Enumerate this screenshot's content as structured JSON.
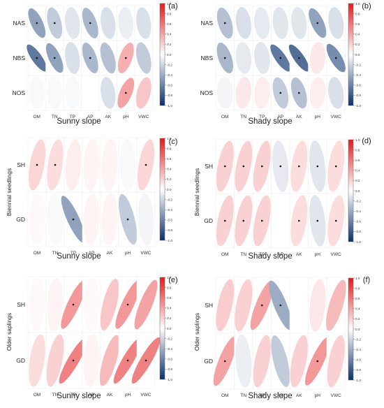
{
  "colorbar": {
    "ticks": [
      "1.0",
      "0.8",
      "0.6",
      "0.4",
      "0.2",
      "0.0",
      "-0.2",
      "-0.4",
      "-0.6",
      "-0.8",
      "-1.0"
    ],
    "low_color": "#08306b",
    "mid_color": "#ffffff",
    "high_color": "#e41a1c"
  },
  "chart_data": [
    {
      "type": "heatmap",
      "panel": "(a)",
      "xlabel": "Sunny slope",
      "ylabel": "",
      "columns": [
        "OM",
        "TN",
        "TP",
        "AP",
        "AK",
        "pH",
        "VWC"
      ],
      "rows": [
        "NAS",
        "NBS",
        "NOS"
      ],
      "values": [
        [
          -0.45,
          -0.25,
          -0.12,
          -0.35,
          -0.15,
          -0.08,
          -0.15
        ],
        [
          -0.65,
          -0.45,
          -0.15,
          -0.35,
          -0.3,
          0.35,
          -0.25
        ],
        [
          -0.03,
          -0.03,
          -0.03,
          0.0,
          -0.15,
          0.4,
          0.25
        ]
      ],
      "significant": [
        [
          1,
          1,
          0,
          1,
          0,
          0,
          0
        ],
        [
          1,
          1,
          0,
          1,
          0,
          1,
          0
        ],
        [
          0,
          0,
          0,
          0,
          0,
          1,
          0
        ]
      ]
    },
    {
      "type": "heatmap",
      "panel": "(b)",
      "xlabel": "Shady slope",
      "ylabel": "",
      "columns": [
        "OM",
        "TN",
        "TP",
        "AP",
        "AK",
        "pH",
        "VWC"
      ],
      "rows": [
        "NAS",
        "NBS",
        "NOS"
      ],
      "values": [
        [
          -0.3,
          -0.15,
          -0.1,
          -0.12,
          -0.12,
          -0.45,
          -0.15
        ],
        [
          -0.35,
          -0.1,
          -0.12,
          -0.65,
          -0.7,
          0.1,
          -0.55
        ],
        [
          -0.05,
          0.1,
          0.08,
          -0.25,
          -0.3,
          0.08,
          -0.15
        ]
      ],
      "significant": [
        [
          1,
          0,
          0,
          0,
          0,
          1,
          0
        ],
        [
          1,
          0,
          0,
          1,
          1,
          0,
          1
        ],
        [
          0,
          0,
          0,
          1,
          1,
          0,
          0
        ]
      ]
    },
    {
      "type": "heatmap",
      "panel": "(c)",
      "xlabel": "Sunny slope",
      "ylabel": "Biennial seedlings",
      "columns": [
        "OM",
        "TN",
        "TP",
        "AP",
        "AK",
        "pH",
        "VWC"
      ],
      "rows": [
        "SH",
        "GD"
      ],
      "values": [
        [
          0.18,
          0.15,
          0.08,
          0.05,
          0.05,
          -0.03,
          0.18
        ],
        [
          0.03,
          -0.03,
          -0.45,
          0.05,
          0.05,
          -0.25,
          -0.05
        ]
      ],
      "significant": [
        [
          1,
          1,
          0,
          0,
          0,
          0,
          1
        ],
        [
          0,
          0,
          1,
          0,
          0,
          1,
          0
        ]
      ]
    },
    {
      "type": "heatmap",
      "panel": "(d)",
      "xlabel": "Shady slope",
      "ylabel": "Biennial seedlings",
      "columns": [
        "OM",
        "TN",
        "TP",
        "AP",
        "AK",
        "pH",
        "VWC"
      ],
      "rows": [
        "SH",
        "GD"
      ],
      "values": [
        [
          0.2,
          0.2,
          0.2,
          -0.1,
          0.15,
          -0.12,
          0.15
        ],
        [
          0.2,
          0.2,
          0.2,
          0.0,
          0.15,
          -0.12,
          0.15
        ]
      ],
      "significant": [
        [
          1,
          1,
          1,
          1,
          1,
          1,
          1
        ],
        [
          1,
          1,
          1,
          0,
          1,
          1,
          1
        ]
      ]
    },
    {
      "type": "heatmap",
      "panel": "(e)",
      "xlabel": "Sunny slope",
      "ylabel": "Older saplings",
      "columns": [
        "OM",
        "TN",
        "TP",
        "AP",
        "AK",
        "pH",
        "VWC"
      ],
      "rows": [
        "SH",
        "GD"
      ],
      "values": [
        [
          0.03,
          0.05,
          0.45,
          0.03,
          0.25,
          0.45,
          0.4
        ],
        [
          0.15,
          0.2,
          0.55,
          0.05,
          0.3,
          0.55,
          0.55
        ]
      ],
      "significant": [
        [
          0,
          0,
          1,
          0,
          0,
          1,
          0
        ],
        [
          0,
          0,
          1,
          0,
          0,
          1,
          1
        ]
      ]
    },
    {
      "type": "heatmap",
      "panel": "(f)",
      "xlabel": "Shady slope",
      "ylabel": "Older saplings",
      "columns": [
        "OM",
        "TN",
        "TP",
        "AP",
        "AK",
        "pH",
        "VWC"
      ],
      "rows": [
        "SH",
        "GD"
      ],
      "values": [
        [
          0.22,
          0.2,
          0.4,
          -0.4,
          0.0,
          0.1,
          0.3
        ],
        [
          0.4,
          -0.08,
          0.2,
          -0.25,
          0.2,
          0.45,
          0.2
        ]
      ],
      "significant": [
        [
          0,
          0,
          1,
          1,
          0,
          0,
          0
        ],
        [
          1,
          0,
          0,
          0,
          0,
          1,
          0
        ]
      ]
    }
  ]
}
